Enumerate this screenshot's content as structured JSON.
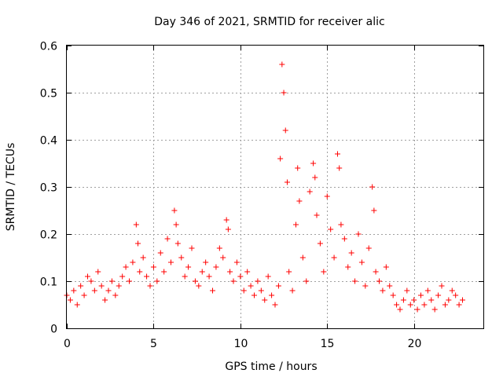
{
  "chart_data": {
    "type": "scatter",
    "title": "Day 346 of 2021, SRMTID for receiver alic",
    "xlabel": "GPS time / hours",
    "ylabel": "SRMTID / TECUs",
    "xlim": [
      0,
      24
    ],
    "ylim": [
      0,
      0.6
    ],
    "xticks": [
      0,
      5,
      10,
      15,
      20
    ],
    "xtick_labels": [
      "0",
      "5",
      "10",
      "15",
      "20"
    ],
    "yticks": [
      0,
      0.1,
      0.2,
      0.3,
      0.4,
      0.5,
      0.6
    ],
    "ytick_labels": [
      "0",
      "0.1",
      "0.2",
      "0.3",
      "0.4",
      "0.5",
      "0.6"
    ],
    "grid": true,
    "marker": "+",
    "color": "#ff0000",
    "series": [
      {
        "name": "SRMTID",
        "x": [
          0.0,
          0.2,
          0.4,
          0.6,
          0.8,
          1.0,
          1.2,
          1.4,
          1.6,
          1.8,
          2.0,
          2.2,
          2.4,
          2.6,
          2.8,
          3.0,
          3.2,
          3.4,
          3.6,
          3.8,
          4.0,
          4.1,
          4.2,
          4.4,
          4.6,
          4.8,
          5.0,
          5.2,
          5.4,
          5.6,
          5.8,
          6.0,
          6.2,
          6.3,
          6.4,
          6.6,
          6.8,
          7.0,
          7.2,
          7.4,
          7.6,
          7.8,
          8.0,
          8.2,
          8.4,
          8.6,
          8.8,
          9.0,
          9.2,
          9.3,
          9.4,
          9.6,
          9.8,
          10.0,
          10.2,
          10.4,
          10.6,
          10.8,
          11.0,
          11.2,
          11.4,
          11.6,
          11.8,
          12.0,
          12.2,
          12.3,
          12.4,
          12.5,
          12.6,
          12.7,
          12.8,
          13.0,
          13.2,
          13.3,
          13.4,
          13.6,
          13.8,
          14.0,
          14.2,
          14.3,
          14.4,
          14.6,
          14.8,
          15.0,
          15.2,
          15.4,
          15.6,
          15.7,
          15.8,
          16.0,
          16.2,
          16.4,
          16.6,
          16.8,
          17.0,
          17.2,
          17.4,
          17.6,
          17.7,
          17.8,
          18.0,
          18.2,
          18.4,
          18.6,
          18.8,
          19.0,
          19.2,
          19.4,
          19.6,
          19.8,
          20.0,
          20.2,
          20.4,
          20.6,
          20.8,
          21.0,
          21.2,
          21.4,
          21.6,
          21.8,
          22.0,
          22.2,
          22.4,
          22.6,
          22.8
        ],
        "y": [
          0.07,
          0.06,
          0.08,
          0.05,
          0.09,
          0.07,
          0.11,
          0.1,
          0.08,
          0.12,
          0.09,
          0.06,
          0.08,
          0.1,
          0.07,
          0.09,
          0.11,
          0.13,
          0.1,
          0.14,
          0.22,
          0.18,
          0.12,
          0.15,
          0.11,
          0.09,
          0.13,
          0.1,
          0.16,
          0.12,
          0.19,
          0.14,
          0.25,
          0.22,
          0.18,
          0.15,
          0.11,
          0.13,
          0.17,
          0.1,
          0.09,
          0.12,
          0.14,
          0.11,
          0.08,
          0.13,
          0.17,
          0.15,
          0.23,
          0.21,
          0.12,
          0.1,
          0.14,
          0.11,
          0.08,
          0.12,
          0.09,
          0.07,
          0.1,
          0.08,
          0.06,
          0.11,
          0.07,
          0.05,
          0.09,
          0.36,
          0.56,
          0.5,
          0.42,
          0.31,
          0.12,
          0.08,
          0.22,
          0.34,
          0.27,
          0.15,
          0.1,
          0.29,
          0.35,
          0.32,
          0.24,
          0.18,
          0.12,
          0.28,
          0.21,
          0.15,
          0.37,
          0.34,
          0.22,
          0.19,
          0.13,
          0.16,
          0.1,
          0.2,
          0.14,
          0.09,
          0.17,
          0.3,
          0.25,
          0.12,
          0.1,
          0.08,
          0.13,
          0.09,
          0.07,
          0.05,
          0.04,
          0.06,
          0.08,
          0.05,
          0.06,
          0.04,
          0.07,
          0.05,
          0.08,
          0.06,
          0.04,
          0.07,
          0.09,
          0.05,
          0.06,
          0.08,
          0.07,
          0.05,
          0.06
        ]
      }
    ]
  }
}
